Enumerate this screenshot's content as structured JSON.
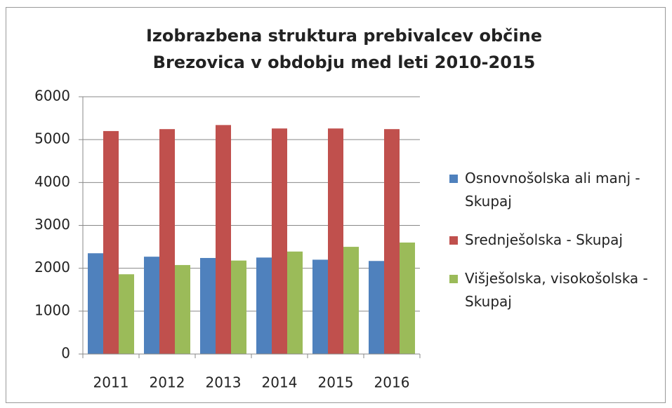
{
  "chart_data": {
    "type": "bar",
    "title": "Izobrazbena struktura prebivalcev občine Brezovica v obdobju med leti 2010-2015",
    "categories": [
      "2011",
      "2012",
      "2013",
      "2014",
      "2015",
      "2016"
    ],
    "series": [
      {
        "name": "Osnovnošolska ali manj - Skupaj",
        "color": "#4f81bd",
        "values": [
          2350,
          2270,
          2240,
          2250,
          2200,
          2170
        ]
      },
      {
        "name": "Srednješolska - Skupaj",
        "color": "#c0504d",
        "values": [
          5200,
          5245,
          5340,
          5260,
          5260,
          5245
        ]
      },
      {
        "name": "Višješolska, visokošolska - Skupaj",
        "color": "#9bbb59",
        "values": [
          1860,
          2075,
          2180,
          2390,
          2500,
          2600
        ]
      }
    ],
    "ylim": [
      0,
      6000
    ],
    "yticks": [
      0,
      1000,
      2000,
      3000,
      4000,
      5000,
      6000
    ],
    "grid": true,
    "legend": "right"
  }
}
